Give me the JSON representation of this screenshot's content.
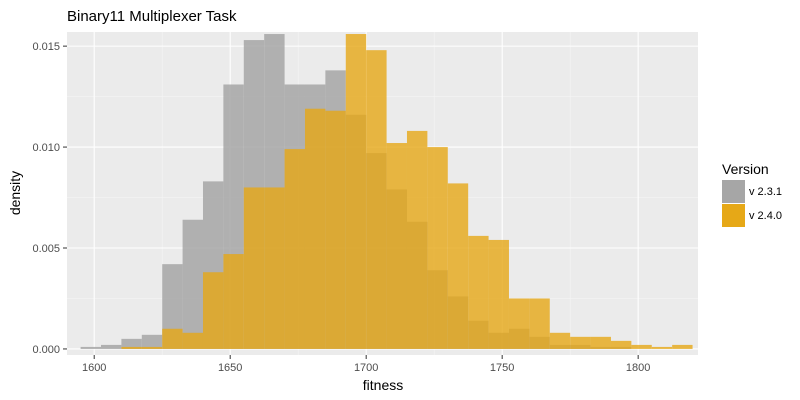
{
  "chart_data": {
    "type": "histogram",
    "title": "Binary11 Multiplexer Task",
    "xlabel": "fitness",
    "ylabel": "density",
    "xlim": [
      1590,
      1822
    ],
    "ylim": [
      -0.0003,
      0.0157
    ],
    "x_ticks": [
      1600,
      1650,
      1700,
      1750,
      1800
    ],
    "x_tick_labels": [
      "1600",
      "1650",
      "1700",
      "1750",
      "1800"
    ],
    "y_ticks": [
      0.0,
      0.005,
      0.01,
      0.015
    ],
    "y_tick_labels": [
      "0.000",
      "0.005",
      "0.010",
      "0.015"
    ],
    "grid": true,
    "legend": {
      "title": "Version",
      "position": "right"
    },
    "bin_width": 7.5,
    "series": [
      {
        "name": "v 2.3.1",
        "color": "#a6a6a6",
        "bins": [
          {
            "x0": 1595,
            "density": 0.0001
          },
          {
            "x0": 1602.5,
            "density": 0.0002
          },
          {
            "x0": 1610,
            "density": 0.0005
          },
          {
            "x0": 1617.5,
            "density": 0.0007
          },
          {
            "x0": 1625,
            "density": 0.0042
          },
          {
            "x0": 1632.5,
            "density": 0.0064
          },
          {
            "x0": 1640,
            "density": 0.0083
          },
          {
            "x0": 1647.5,
            "density": 0.0131
          },
          {
            "x0": 1655,
            "density": 0.0153
          },
          {
            "x0": 1662.5,
            "density": 0.0156
          },
          {
            "x0": 1670,
            "density": 0.0131
          },
          {
            "x0": 1677.5,
            "density": 0.0131
          },
          {
            "x0": 1685,
            "density": 0.0138
          },
          {
            "x0": 1692.5,
            "density": 0.0116
          },
          {
            "x0": 1700,
            "density": 0.0097
          },
          {
            "x0": 1707.5,
            "density": 0.0079
          },
          {
            "x0": 1715,
            "density": 0.0063
          },
          {
            "x0": 1722.5,
            "density": 0.0039
          },
          {
            "x0": 1730,
            "density": 0.0026
          },
          {
            "x0": 1737.5,
            "density": 0.0014
          },
          {
            "x0": 1745,
            "density": 0.0008
          },
          {
            "x0": 1752.5,
            "density": 0.001
          },
          {
            "x0": 1760,
            "density": 0.0006
          },
          {
            "x0": 1767.5,
            "density": 0.0002
          },
          {
            "x0": 1775,
            "density": 0.0002
          },
          {
            "x0": 1782.5,
            "density": 0.0001
          },
          {
            "x0": 1790,
            "density": 0.0001
          }
        ]
      },
      {
        "name": "v 2.4.0",
        "color": "#e6a817",
        "bins": [
          {
            "x0": 1610,
            "density": 0.0001
          },
          {
            "x0": 1617.5,
            "density": 0.0001
          },
          {
            "x0": 1625,
            "density": 0.001
          },
          {
            "x0": 1632.5,
            "density": 0.0008
          },
          {
            "x0": 1640,
            "density": 0.0038
          },
          {
            "x0": 1647.5,
            "density": 0.0047
          },
          {
            "x0": 1655,
            "density": 0.008
          },
          {
            "x0": 1662.5,
            "density": 0.008
          },
          {
            "x0": 1670,
            "density": 0.0099
          },
          {
            "x0": 1677.5,
            "density": 0.0119
          },
          {
            "x0": 1685,
            "density": 0.0118
          },
          {
            "x0": 1692.5,
            "density": 0.0156
          },
          {
            "x0": 1700,
            "density": 0.0148
          },
          {
            "x0": 1707.5,
            "density": 0.0102
          },
          {
            "x0": 1715,
            "density": 0.0108
          },
          {
            "x0": 1722.5,
            "density": 0.01
          },
          {
            "x0": 1730,
            "density": 0.0082
          },
          {
            "x0": 1737.5,
            "density": 0.0056
          },
          {
            "x0": 1745,
            "density": 0.0054
          },
          {
            "x0": 1752.5,
            "density": 0.0025
          },
          {
            "x0": 1760,
            "density": 0.0025
          },
          {
            "x0": 1767.5,
            "density": 0.0008
          },
          {
            "x0": 1775,
            "density": 0.0006
          },
          {
            "x0": 1782.5,
            "density": 0.0006
          },
          {
            "x0": 1790,
            "density": 0.0004
          },
          {
            "x0": 1797.5,
            "density": 0.0002
          },
          {
            "x0": 1805,
            "density": 0.0001
          },
          {
            "x0": 1812.5,
            "density": 0.0002
          }
        ]
      }
    ]
  }
}
